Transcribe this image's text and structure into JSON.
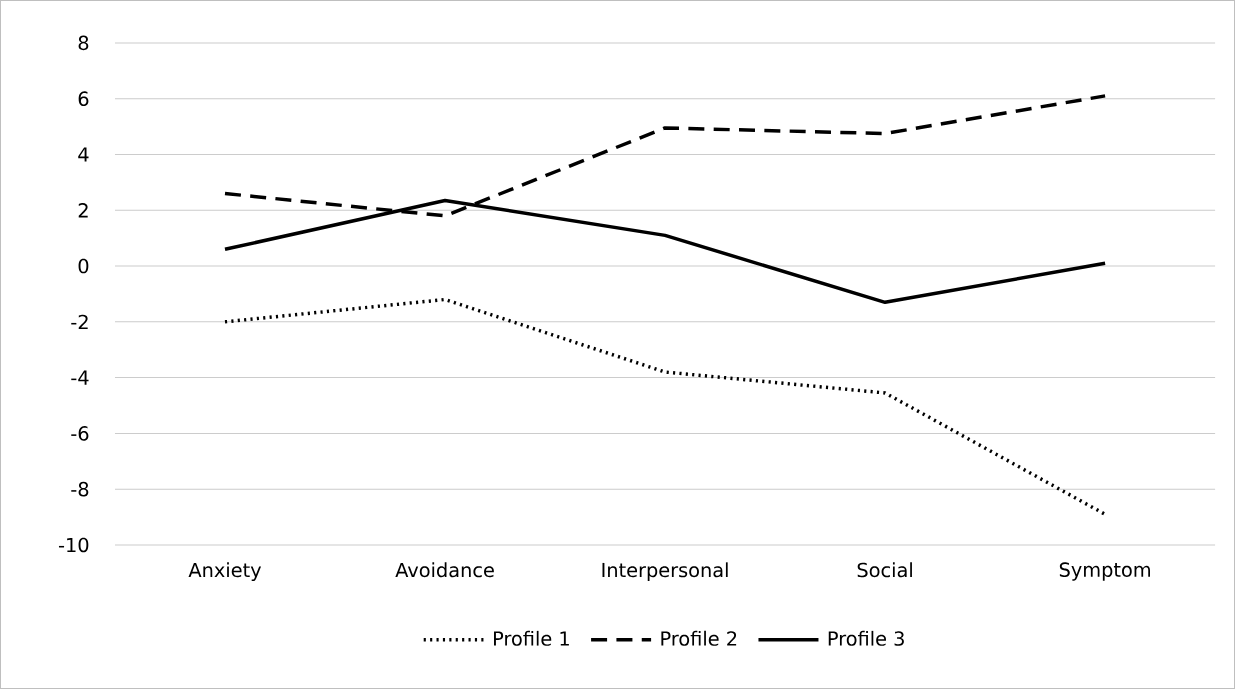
{
  "chart_data": {
    "type": "line",
    "categories": [
      "Anxiety",
      "Avoidance",
      "Interpersonal",
      "Social",
      "Symptom"
    ],
    "series": [
      {
        "name": "Profile 1",
        "color": "#000000",
        "line_style": "dotted",
        "values": [
          -2,
          -1.2,
          -3.8,
          -4.55,
          -8.9
        ]
      },
      {
        "name": "Profile 2",
        "color": "#000000",
        "line_style": "dashed",
        "values": [
          2.6,
          1.8,
          4.95,
          4.75,
          6.1
        ]
      },
      {
        "name": "Profile 3",
        "color": "#000000",
        "line_style": "solid",
        "values": [
          0.6,
          2.35,
          1.1,
          -1.3,
          0.1
        ]
      }
    ],
    "ylim": [
      -10,
      8
    ],
    "yticks": [
      -10,
      -8,
      -6,
      -4,
      -2,
      0,
      2,
      4,
      6,
      8
    ],
    "grid": "y",
    "legend": "bottom",
    "marker": "none"
  }
}
